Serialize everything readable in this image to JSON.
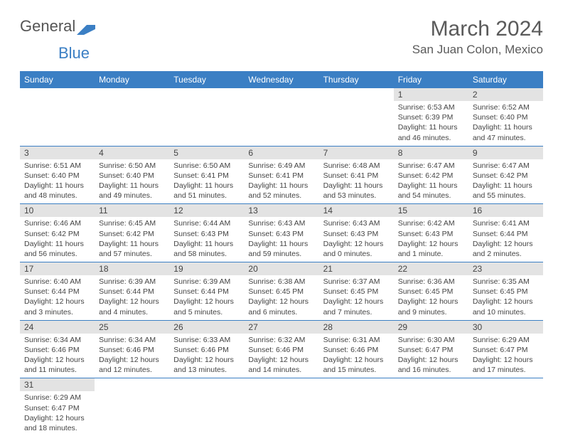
{
  "brand": {
    "part1": "General",
    "part2": "Blue"
  },
  "title": "March 2024",
  "location": "San Juan Colon, Mexico",
  "colors": {
    "header_bg": "#3b7fc4",
    "header_text": "#ffffff",
    "daynum_bg": "#e3e3e3",
    "row_border": "#3b7fc4",
    "body_text": "#444444",
    "title_text": "#5a5a5a"
  },
  "typography": {
    "title_fontsize": 30,
    "location_fontsize": 17,
    "weekday_fontsize": 12,
    "daynum_fontsize": 12,
    "content_fontsize": 10.5
  },
  "weekdays": [
    "Sunday",
    "Monday",
    "Tuesday",
    "Wednesday",
    "Thursday",
    "Friday",
    "Saturday"
  ],
  "weeks": [
    [
      null,
      null,
      null,
      null,
      null,
      {
        "day": "1",
        "sunrise": "Sunrise: 6:53 AM",
        "sunset": "Sunset: 6:39 PM",
        "daylight": "Daylight: 11 hours and 46 minutes."
      },
      {
        "day": "2",
        "sunrise": "Sunrise: 6:52 AM",
        "sunset": "Sunset: 6:40 PM",
        "daylight": "Daylight: 11 hours and 47 minutes."
      }
    ],
    [
      {
        "day": "3",
        "sunrise": "Sunrise: 6:51 AM",
        "sunset": "Sunset: 6:40 PM",
        "daylight": "Daylight: 11 hours and 48 minutes."
      },
      {
        "day": "4",
        "sunrise": "Sunrise: 6:50 AM",
        "sunset": "Sunset: 6:40 PM",
        "daylight": "Daylight: 11 hours and 49 minutes."
      },
      {
        "day": "5",
        "sunrise": "Sunrise: 6:50 AM",
        "sunset": "Sunset: 6:41 PM",
        "daylight": "Daylight: 11 hours and 51 minutes."
      },
      {
        "day": "6",
        "sunrise": "Sunrise: 6:49 AM",
        "sunset": "Sunset: 6:41 PM",
        "daylight": "Daylight: 11 hours and 52 minutes."
      },
      {
        "day": "7",
        "sunrise": "Sunrise: 6:48 AM",
        "sunset": "Sunset: 6:41 PM",
        "daylight": "Daylight: 11 hours and 53 minutes."
      },
      {
        "day": "8",
        "sunrise": "Sunrise: 6:47 AM",
        "sunset": "Sunset: 6:42 PM",
        "daylight": "Daylight: 11 hours and 54 minutes."
      },
      {
        "day": "9",
        "sunrise": "Sunrise: 6:47 AM",
        "sunset": "Sunset: 6:42 PM",
        "daylight": "Daylight: 11 hours and 55 minutes."
      }
    ],
    [
      {
        "day": "10",
        "sunrise": "Sunrise: 6:46 AM",
        "sunset": "Sunset: 6:42 PM",
        "daylight": "Daylight: 11 hours and 56 minutes."
      },
      {
        "day": "11",
        "sunrise": "Sunrise: 6:45 AM",
        "sunset": "Sunset: 6:42 PM",
        "daylight": "Daylight: 11 hours and 57 minutes."
      },
      {
        "day": "12",
        "sunrise": "Sunrise: 6:44 AM",
        "sunset": "Sunset: 6:43 PM",
        "daylight": "Daylight: 11 hours and 58 minutes."
      },
      {
        "day": "13",
        "sunrise": "Sunrise: 6:43 AM",
        "sunset": "Sunset: 6:43 PM",
        "daylight": "Daylight: 11 hours and 59 minutes."
      },
      {
        "day": "14",
        "sunrise": "Sunrise: 6:43 AM",
        "sunset": "Sunset: 6:43 PM",
        "daylight": "Daylight: 12 hours and 0 minutes."
      },
      {
        "day": "15",
        "sunrise": "Sunrise: 6:42 AM",
        "sunset": "Sunset: 6:43 PM",
        "daylight": "Daylight: 12 hours and 1 minute."
      },
      {
        "day": "16",
        "sunrise": "Sunrise: 6:41 AM",
        "sunset": "Sunset: 6:44 PM",
        "daylight": "Daylight: 12 hours and 2 minutes."
      }
    ],
    [
      {
        "day": "17",
        "sunrise": "Sunrise: 6:40 AM",
        "sunset": "Sunset: 6:44 PM",
        "daylight": "Daylight: 12 hours and 3 minutes."
      },
      {
        "day": "18",
        "sunrise": "Sunrise: 6:39 AM",
        "sunset": "Sunset: 6:44 PM",
        "daylight": "Daylight: 12 hours and 4 minutes."
      },
      {
        "day": "19",
        "sunrise": "Sunrise: 6:39 AM",
        "sunset": "Sunset: 6:44 PM",
        "daylight": "Daylight: 12 hours and 5 minutes."
      },
      {
        "day": "20",
        "sunrise": "Sunrise: 6:38 AM",
        "sunset": "Sunset: 6:45 PM",
        "daylight": "Daylight: 12 hours and 6 minutes."
      },
      {
        "day": "21",
        "sunrise": "Sunrise: 6:37 AM",
        "sunset": "Sunset: 6:45 PM",
        "daylight": "Daylight: 12 hours and 7 minutes."
      },
      {
        "day": "22",
        "sunrise": "Sunrise: 6:36 AM",
        "sunset": "Sunset: 6:45 PM",
        "daylight": "Daylight: 12 hours and 9 minutes."
      },
      {
        "day": "23",
        "sunrise": "Sunrise: 6:35 AM",
        "sunset": "Sunset: 6:45 PM",
        "daylight": "Daylight: 12 hours and 10 minutes."
      }
    ],
    [
      {
        "day": "24",
        "sunrise": "Sunrise: 6:34 AM",
        "sunset": "Sunset: 6:46 PM",
        "daylight": "Daylight: 12 hours and 11 minutes."
      },
      {
        "day": "25",
        "sunrise": "Sunrise: 6:34 AM",
        "sunset": "Sunset: 6:46 PM",
        "daylight": "Daylight: 12 hours and 12 minutes."
      },
      {
        "day": "26",
        "sunrise": "Sunrise: 6:33 AM",
        "sunset": "Sunset: 6:46 PM",
        "daylight": "Daylight: 12 hours and 13 minutes."
      },
      {
        "day": "27",
        "sunrise": "Sunrise: 6:32 AM",
        "sunset": "Sunset: 6:46 PM",
        "daylight": "Daylight: 12 hours and 14 minutes."
      },
      {
        "day": "28",
        "sunrise": "Sunrise: 6:31 AM",
        "sunset": "Sunset: 6:46 PM",
        "daylight": "Daylight: 12 hours and 15 minutes."
      },
      {
        "day": "29",
        "sunrise": "Sunrise: 6:30 AM",
        "sunset": "Sunset: 6:47 PM",
        "daylight": "Daylight: 12 hours and 16 minutes."
      },
      {
        "day": "30",
        "sunrise": "Sunrise: 6:29 AM",
        "sunset": "Sunset: 6:47 PM",
        "daylight": "Daylight: 12 hours and 17 minutes."
      }
    ],
    [
      {
        "day": "31",
        "sunrise": "Sunrise: 6:29 AM",
        "sunset": "Sunset: 6:47 PM",
        "daylight": "Daylight: 12 hours and 18 minutes."
      },
      null,
      null,
      null,
      null,
      null,
      null
    ]
  ]
}
